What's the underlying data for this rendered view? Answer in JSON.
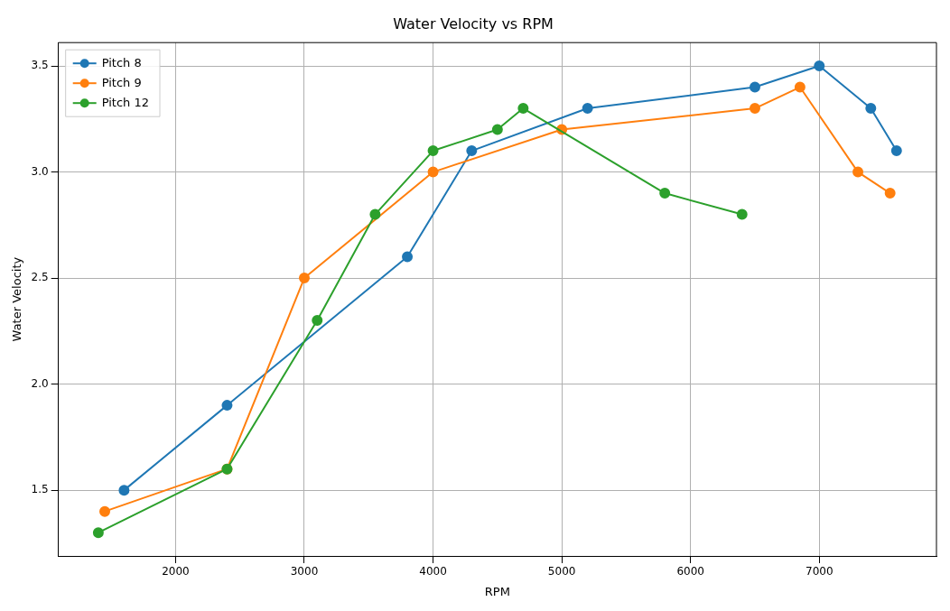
{
  "chart_data": {
    "type": "line",
    "title": "Water Velocity vs RPM",
    "xlabel": "RPM",
    "ylabel": "Water Velocity",
    "xlim": [
      1090,
      7910
    ],
    "xticks": [
      2000,
      3000,
      4000,
      5000,
      6000,
      7000
    ],
    "ylim": [
      1.19,
      3.61
    ],
    "yticks": [
      1.5,
      {
        "value": 2,
        "label": "2.0"
      },
      2.5,
      {
        "value": 3,
        "label": "3.0"
      },
      3.5
    ],
    "grid": true,
    "legend": "top left",
    "marker": "circle",
    "line_style": "solid",
    "series": [
      {
        "name": "Pitch 8",
        "color": "#1f77b4",
        "x": [
          1600,
          2400,
          3800,
          4300,
          5200,
          6500,
          7000,
          7400,
          7600
        ],
        "values": [
          1.5,
          1.9,
          2.6,
          3.1,
          3.3,
          3.4,
          3.5,
          3.3,
          3.1
        ]
      },
      {
        "name": "Pitch 9",
        "color": "#ff7f0e",
        "x": [
          1450,
          2400,
          3000,
          4000,
          5000,
          6500,
          6850,
          7300,
          7550
        ],
        "values": [
          1.4,
          1.6,
          2.5,
          3.0,
          3.2,
          3.3,
          3.4,
          3.0,
          2.9
        ]
      },
      {
        "name": "Pitch 12",
        "color": "#2ca02c",
        "x": [
          1400,
          2400,
          3100,
          3550,
          4000,
          4500,
          4700,
          5800,
          6400
        ],
        "values": [
          1.3,
          1.6,
          2.3,
          2.8,
          3.1,
          3.2,
          3.3,
          2.9,
          2.8
        ]
      }
    ]
  }
}
